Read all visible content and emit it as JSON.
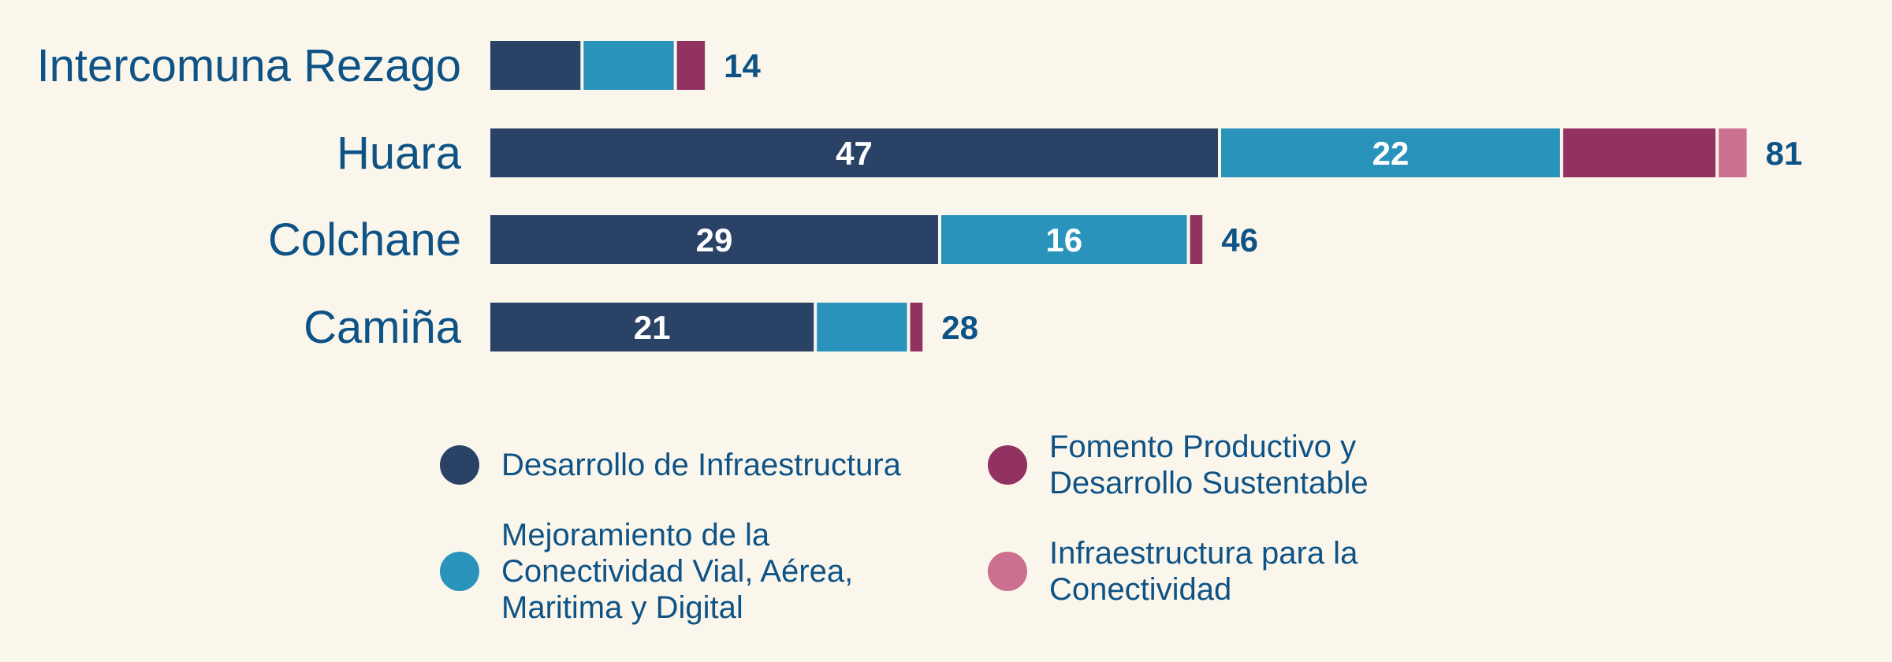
{
  "chart_data": {
    "type": "bar",
    "orientation": "horizontal",
    "stacked": true,
    "title": "",
    "xlabel": "",
    "ylabel": "",
    "grid": false,
    "legend_position": "bottom",
    "xlim": [
      0,
      81
    ],
    "categories": [
      "Intercomuna Rezago",
      "Huara",
      "Colchane",
      "Camiña"
    ],
    "series": [
      {
        "name": "Desarrollo de Infraestructura",
        "color": "#2B4267",
        "values": [
          6,
          47,
          29,
          21
        ],
        "labels": [
          "",
          "47",
          "29",
          "21"
        ]
      },
      {
        "name": "Mejoramiento de la Conectividad Vial, Aérea, Maritima y Digital",
        "color": "#2A93BC",
        "values": [
          6,
          22,
          16,
          6
        ],
        "labels": [
          "",
          "22",
          "16",
          ""
        ]
      },
      {
        "name": "Fomento Productivo y Desarrollo Sustentable",
        "color": "#913261",
        "values": [
          2,
          10,
          1,
          1
        ],
        "labels": [
          "",
          "",
          "",
          ""
        ]
      },
      {
        "name": "Infraestructura para la Conectividad",
        "color": "#CB718F",
        "values": [
          0,
          2,
          0,
          0
        ],
        "labels": [
          "",
          "",
          "",
          ""
        ]
      }
    ],
    "totals": [
      14,
      81,
      46,
      28
    ],
    "total_labels": [
      "14",
      "81",
      "46",
      "28"
    ]
  },
  "legend": {
    "items": [
      {
        "label": "Desarrollo de Infraestructura",
        "color": "#2B4267"
      },
      {
        "label": "Fomento Productivo y\nDesarrollo Sustentable",
        "color": "#913261"
      },
      {
        "label": "Mejoramiento de la\nConectividad Vial, Aérea,\nMaritima y Digital",
        "color": "#2A93BC"
      },
      {
        "label": "Infraestructura para la\nConectividad",
        "color": "#CB718F"
      }
    ]
  },
  "colors": {
    "background": "#FBF6EC",
    "text": "#0E5386"
  }
}
